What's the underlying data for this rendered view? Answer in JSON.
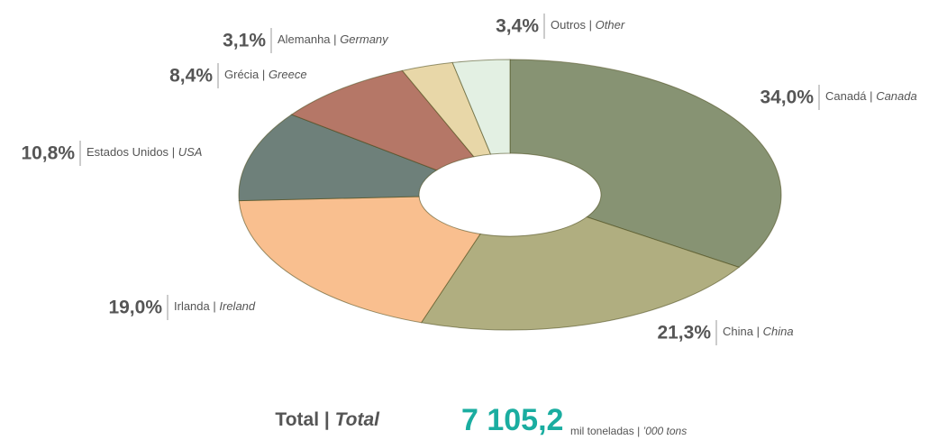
{
  "chart_data": {
    "type": "pie",
    "donut": true,
    "categories": [
      "Canadá",
      "China",
      "Irlanda",
      "Estados Unidos",
      "Grécia",
      "Alemanha",
      "Outros"
    ],
    "categories_en": [
      "Canada",
      "China",
      "Ireland",
      "USA",
      "Greece",
      "Germany",
      "Other"
    ],
    "separator": "|",
    "values": [
      34.0,
      21.3,
      19.0,
      10.8,
      8.4,
      3.1,
      3.4
    ],
    "value_labels": [
      "34,0%",
      "21,3%",
      "19,0%",
      "10,8%",
      "8,4%",
      "3,1%",
      "3,4%"
    ],
    "colors": [
      "#879373",
      "#b0ae80",
      "#f9bf8f",
      "#6e807a",
      "#b57767",
      "#e8d7a8",
      "#e3f0e3"
    ],
    "total_label": "Total",
    "total_label_en": "Total",
    "total_value": 7105.2,
    "total_value_label": "7 105,2",
    "unit": "mil toneladas",
    "unit_en": "’000 tons"
  }
}
